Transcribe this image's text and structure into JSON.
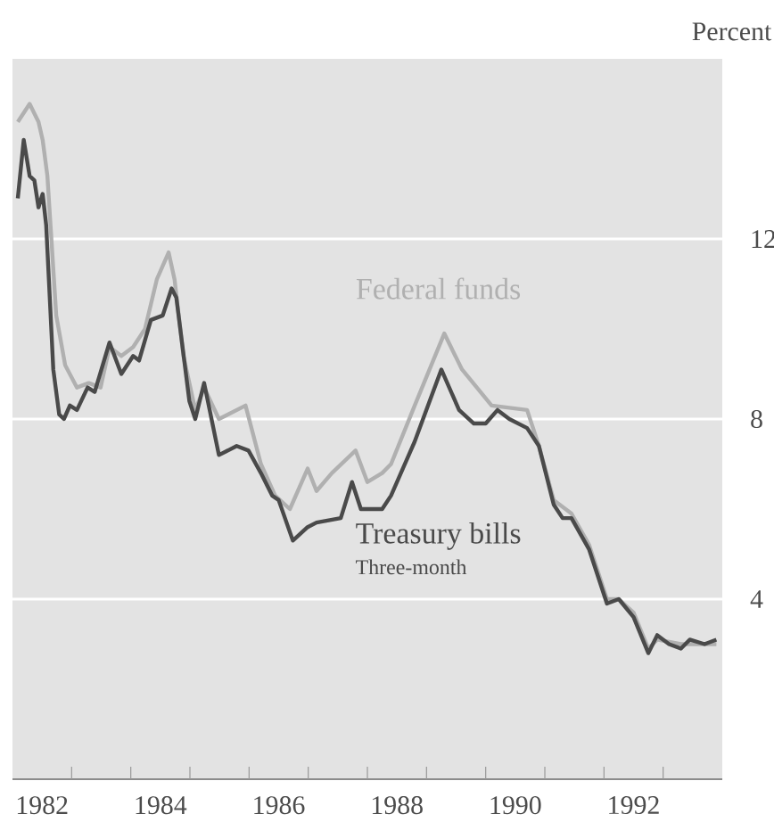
{
  "chart_data": {
    "type": "line",
    "ylabel": "Percent",
    "xlim": [
      1982,
      1994
    ],
    "ylim": [
      0,
      16
    ],
    "xticks": [
      {
        "value": 1982.5,
        "label": "1982"
      },
      {
        "value": 1984.5,
        "label": "1984"
      },
      {
        "value": 1986.5,
        "label": "1986"
      },
      {
        "value": 1988.5,
        "label": "1988"
      },
      {
        "value": 1990.5,
        "label": "1990"
      },
      {
        "value": 1992.5,
        "label": "1992"
      },
      {
        "value": 1983,
        "label": null
      },
      {
        "value": 1984,
        "label": null
      },
      {
        "value": 1985,
        "label": null
      },
      {
        "value": 1986,
        "label": null
      },
      {
        "value": 1987,
        "label": null
      },
      {
        "value": 1988,
        "label": null
      },
      {
        "value": 1989,
        "label": null
      },
      {
        "value": 1990,
        "label": null
      },
      {
        "value": 1991,
        "label": null
      },
      {
        "value": 1992,
        "label": null
      },
      {
        "value": 1993,
        "label": null
      }
    ],
    "yticks": [
      4,
      8,
      12
    ],
    "grid": "y",
    "marker": "none",
    "line_style": "solid",
    "annotations": [
      "Three-month"
    ],
    "series": [
      {
        "name": "Federal funds",
        "color": "#b0b0b0",
        "x": [
          1982.09,
          1982.19,
          1982.29,
          1982.44,
          1982.51,
          1982.59,
          1982.74,
          1982.89,
          1983.09,
          1983.29,
          1983.49,
          1983.64,
          1983.84,
          1984.04,
          1984.24,
          1984.44,
          1984.64,
          1984.74,
          1984.89,
          1985.09,
          1985.24,
          1985.49,
          1985.94,
          1986.2,
          1986.44,
          1986.69,
          1986.99,
          1987.14,
          1987.4,
          1987.8,
          1988.0,
          1988.25,
          1988.4,
          1988.8,
          1989.3,
          1989.6,
          1990.1,
          1990.7,
          1990.9,
          1991.15,
          1991.45,
          1991.75,
          1992.05,
          1992.25,
          1992.5,
          1992.75,
          1992.9,
          1993.3,
          1993.7,
          1993.9
        ],
        "values": [
          14.6,
          14.8,
          15.0,
          14.6,
          14.2,
          13.4,
          10.3,
          9.2,
          8.7,
          8.8,
          8.7,
          9.6,
          9.4,
          9.6,
          10.0,
          11.1,
          11.7,
          11.1,
          9.4,
          8.2,
          8.7,
          8.0,
          8.3,
          7.0,
          6.3,
          6.0,
          6.9,
          6.4,
          6.8,
          7.3,
          6.6,
          6.8,
          7.0,
          8.3,
          9.9,
          9.1,
          8.3,
          8.2,
          7.4,
          6.2,
          5.9,
          5.2,
          4.0,
          4.0,
          3.7,
          2.9,
          3.1,
          3.0,
          3.0,
          3.0
        ]
      },
      {
        "name": "Treasury bills",
        "color": "#4a4a4a",
        "x": [
          1982.09,
          1982.19,
          1982.29,
          1982.37,
          1982.44,
          1982.51,
          1982.57,
          1982.69,
          1982.79,
          1982.87,
          1982.97,
          1983.09,
          1983.27,
          1983.39,
          1983.64,
          1983.84,
          1984.04,
          1984.14,
          1984.34,
          1984.54,
          1984.69,
          1984.77,
          1984.99,
          1985.09,
          1985.24,
          1985.49,
          1985.79,
          1985.99,
          1986.2,
          1986.39,
          1986.5,
          1986.74,
          1986.99,
          1987.14,
          1987.55,
          1987.74,
          1987.89,
          1988.25,
          1988.4,
          1988.8,
          1989.25,
          1989.55,
          1989.8,
          1990.0,
          1990.2,
          1990.4,
          1990.7,
          1990.9,
          1991.15,
          1991.3,
          1991.45,
          1991.75,
          1992.05,
          1992.25,
          1992.5,
          1992.75,
          1992.9,
          1993.1,
          1993.3,
          1993.45,
          1993.7,
          1993.9
        ],
        "values": [
          12.9,
          14.2,
          13.4,
          13.3,
          12.7,
          13.0,
          12.3,
          9.1,
          8.1,
          8.0,
          8.3,
          8.2,
          8.7,
          8.6,
          9.7,
          9.0,
          9.4,
          9.3,
          10.2,
          10.3,
          10.9,
          10.7,
          8.4,
          8.0,
          8.8,
          7.2,
          7.4,
          7.3,
          6.8,
          6.3,
          6.2,
          5.3,
          5.6,
          5.7,
          5.8,
          6.6,
          6.0,
          6.0,
          6.3,
          7.5,
          9.1,
          8.2,
          7.9,
          7.9,
          8.2,
          8.0,
          7.8,
          7.4,
          6.1,
          5.8,
          5.8,
          5.1,
          3.9,
          4.0,
          3.6,
          2.8,
          3.2,
          3.0,
          2.9,
          3.1,
          3.0,
          3.1
        ]
      }
    ]
  }
}
